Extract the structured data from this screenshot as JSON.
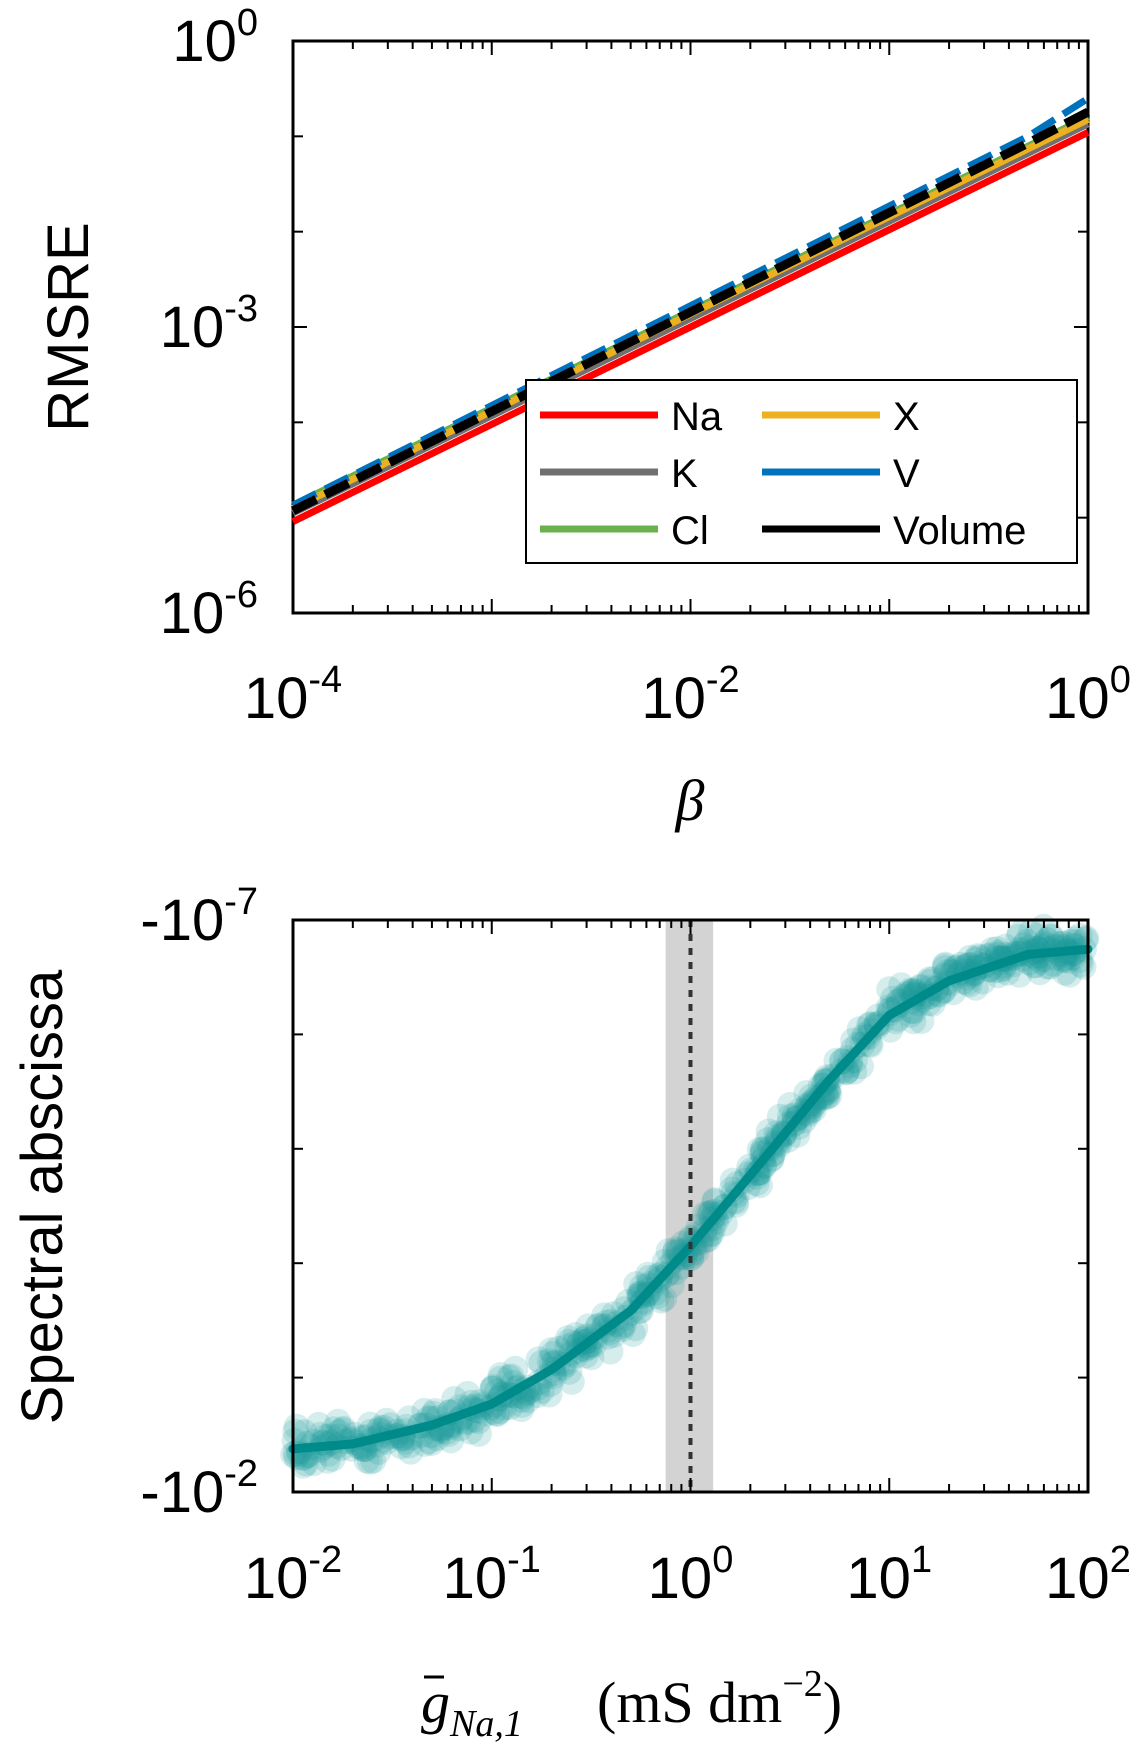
{
  "chart_data": [
    {
      "type": "line",
      "panel": "top",
      "xscale": "log",
      "yscale": "log",
      "xlim": [
        0.0001,
        1
      ],
      "ylim": [
        1e-06,
        1
      ],
      "xlabel": "β",
      "ylabel": "RMSRE",
      "xticks": [
        {
          "value": 0.0001,
          "base": "10",
          "exp": "-4"
        },
        {
          "value": 0.01,
          "base": "10",
          "exp": "-2"
        },
        {
          "value": 1,
          "base": "10",
          "exp": "0"
        }
      ],
      "yticks": [
        {
          "value": 1e-06,
          "base": "10",
          "exp": "-6"
        },
        {
          "value": 0.001,
          "base": "10",
          "exp": "-3"
        },
        {
          "value": 1,
          "base": "10",
          "exp": "0"
        }
      ],
      "legend_position": "bottom-right",
      "series": [
        {
          "name": "Na",
          "color": "#ff0000",
          "dash": "solid",
          "x": [
            0.0001,
            1
          ],
          "y": [
            9.1e-06,
            0.11
          ]
        },
        {
          "name": "K",
          "color": "#707070",
          "dash": "solid",
          "x": [
            0.0001,
            1
          ],
          "y": [
            1.12e-05,
            0.135
          ]
        },
        {
          "name": "Cl",
          "color": "#6ab04c",
          "dash": "solid",
          "x": [
            0.0001,
            1
          ],
          "y": [
            1.35e-05,
            0.16
          ]
        },
        {
          "name": "X",
          "color": "#edb120",
          "dash": "solid",
          "x": [
            0.0001,
            1
          ],
          "y": [
            1.25e-05,
            0.15
          ]
        },
        {
          "name": "V",
          "color": "#0072bd",
          "dash": "dashed",
          "x": [
            0.0001,
            0.5,
            1
          ],
          "y": [
            1.35e-05,
            0.1,
            0.25
          ]
        },
        {
          "name": "Volume",
          "color": "#000000",
          "dash": "dashed",
          "x": [
            0.0001,
            0.5,
            1
          ],
          "y": [
            1.18e-05,
            0.085,
            0.18
          ]
        }
      ]
    },
    {
      "type": "scatter",
      "panel": "bottom",
      "xscale": "log",
      "yscale": "negative-log",
      "xlim": [
        0.01,
        100
      ],
      "ylim": [
        -0.01,
        -1e-07
      ],
      "xlabel_base": "g",
      "xlabel_sub": "Na,1",
      "xlabel_units": "(mS dm",
      "xlabel_units_exp": "−2",
      "xlabel_units_close": ")",
      "ylabel": "Spectral abscissa",
      "xticks": [
        {
          "value": 0.01,
          "base": "10",
          "exp": "-2"
        },
        {
          "value": 0.1,
          "base": "10",
          "exp": "-1"
        },
        {
          "value": 1,
          "base": "10",
          "exp": "0"
        },
        {
          "value": 10,
          "base": "10",
          "exp": "1"
        },
        {
          "value": 100,
          "base": "10",
          "exp": "2"
        }
      ],
      "yticks": [
        {
          "value": -1e-07,
          "base": "-10",
          "exp": "-7"
        },
        {
          "value": -0.01,
          "base": "-10",
          "exp": "-2"
        }
      ],
      "reference_line_x": 1,
      "shaded_band_x": [
        0.75,
        1.3
      ],
      "fit_color": "#008b8b",
      "point_color": "#1a9b9b",
      "fit_curve": {
        "x": [
          0.01,
          0.02,
          0.05,
          0.1,
          0.2,
          0.5,
          1,
          2,
          5,
          10,
          20,
          50,
          100
        ],
        "y": [
          -0.0042,
          -0.0038,
          -0.0026,
          -0.0017,
          -0.00085,
          -0.00026,
          -7.1e-05,
          -1.7e-05,
          -2.5e-06,
          -6.8e-07,
          -3.4e-07,
          -2e-07,
          -1.8e-07
        ]
      }
    }
  ],
  "legend": {
    "items": [
      "Na",
      "K",
      "Cl",
      "X",
      "V",
      "Volume"
    ]
  }
}
